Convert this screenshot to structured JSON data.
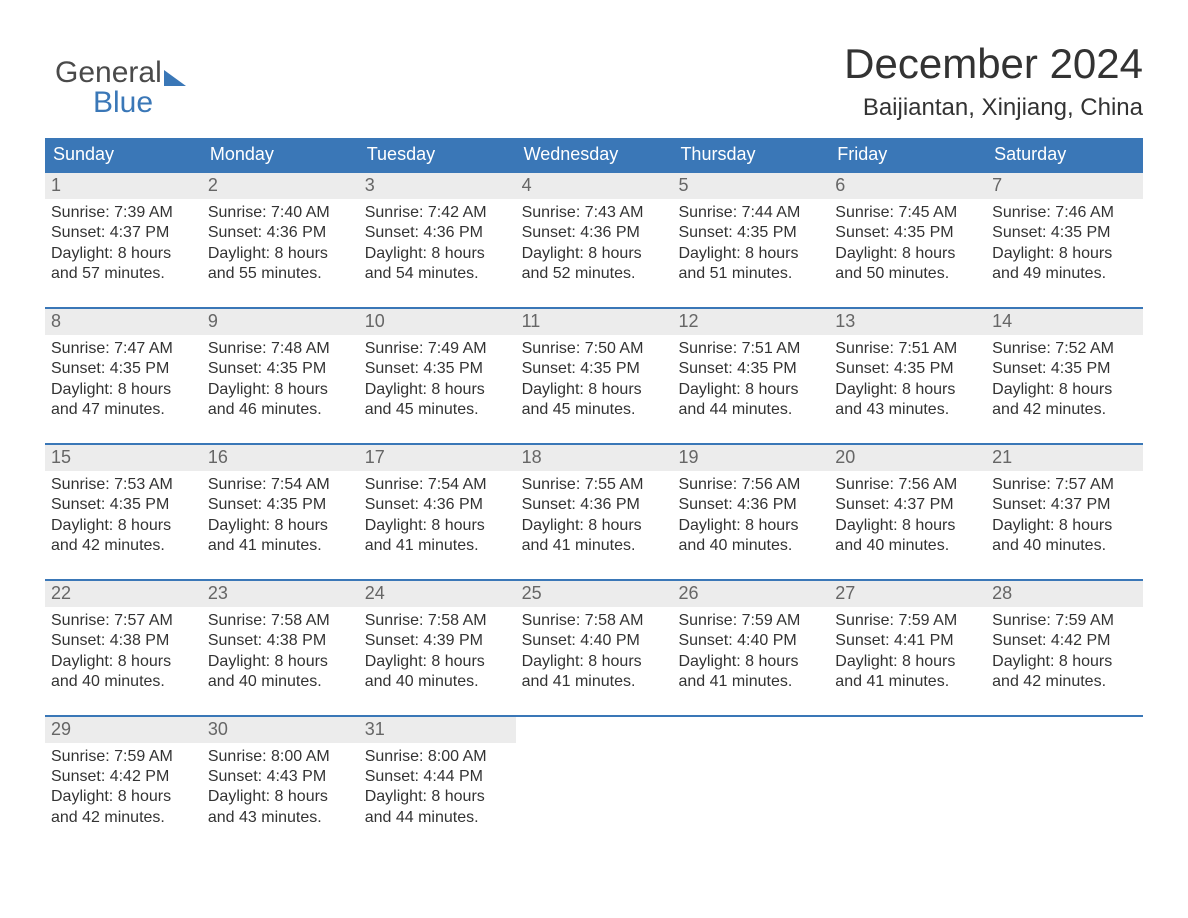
{
  "logo": {
    "line1": "General",
    "line2": "Blue"
  },
  "title": "December 2024",
  "location": "Baijiantan, Xinjiang, China",
  "columns": [
    "Sunday",
    "Monday",
    "Tuesday",
    "Wednesday",
    "Thursday",
    "Friday",
    "Saturday"
  ],
  "colors": {
    "header_bg": "#3a77b7",
    "header_text": "#ffffff",
    "daynum_bg": "#ececec",
    "daynum_text": "#666666",
    "body_text": "#333333",
    "week_border": "#3a77b7",
    "logo_line2": "#3a77b7"
  },
  "layout": {
    "cols": 7,
    "rows": 5
  },
  "label_prefixes": {
    "sunrise": "Sunrise: ",
    "sunset": "Sunset: ",
    "daylight": "Daylight: "
  },
  "weeks": [
    [
      {
        "n": "1",
        "sunrise": "7:39 AM",
        "sunset": "4:37 PM",
        "dl1": "8 hours",
        "dl2": "and 57 minutes."
      },
      {
        "n": "2",
        "sunrise": "7:40 AM",
        "sunset": "4:36 PM",
        "dl1": "8 hours",
        "dl2": "and 55 minutes."
      },
      {
        "n": "3",
        "sunrise": "7:42 AM",
        "sunset": "4:36 PM",
        "dl1": "8 hours",
        "dl2": "and 54 minutes."
      },
      {
        "n": "4",
        "sunrise": "7:43 AM",
        "sunset": "4:36 PM",
        "dl1": "8 hours",
        "dl2": "and 52 minutes."
      },
      {
        "n": "5",
        "sunrise": "7:44 AM",
        "sunset": "4:35 PM",
        "dl1": "8 hours",
        "dl2": "and 51 minutes."
      },
      {
        "n": "6",
        "sunrise": "7:45 AM",
        "sunset": "4:35 PM",
        "dl1": "8 hours",
        "dl2": "and 50 minutes."
      },
      {
        "n": "7",
        "sunrise": "7:46 AM",
        "sunset": "4:35 PM",
        "dl1": "8 hours",
        "dl2": "and 49 minutes."
      }
    ],
    [
      {
        "n": "8",
        "sunrise": "7:47 AM",
        "sunset": "4:35 PM",
        "dl1": "8 hours",
        "dl2": "and 47 minutes."
      },
      {
        "n": "9",
        "sunrise": "7:48 AM",
        "sunset": "4:35 PM",
        "dl1": "8 hours",
        "dl2": "and 46 minutes."
      },
      {
        "n": "10",
        "sunrise": "7:49 AM",
        "sunset": "4:35 PM",
        "dl1": "8 hours",
        "dl2": "and 45 minutes."
      },
      {
        "n": "11",
        "sunrise": "7:50 AM",
        "sunset": "4:35 PM",
        "dl1": "8 hours",
        "dl2": "and 45 minutes."
      },
      {
        "n": "12",
        "sunrise": "7:51 AM",
        "sunset": "4:35 PM",
        "dl1": "8 hours",
        "dl2": "and 44 minutes."
      },
      {
        "n": "13",
        "sunrise": "7:51 AM",
        "sunset": "4:35 PM",
        "dl1": "8 hours",
        "dl2": "and 43 minutes."
      },
      {
        "n": "14",
        "sunrise": "7:52 AM",
        "sunset": "4:35 PM",
        "dl1": "8 hours",
        "dl2": "and 42 minutes."
      }
    ],
    [
      {
        "n": "15",
        "sunrise": "7:53 AM",
        "sunset": "4:35 PM",
        "dl1": "8 hours",
        "dl2": "and 42 minutes."
      },
      {
        "n": "16",
        "sunrise": "7:54 AM",
        "sunset": "4:35 PM",
        "dl1": "8 hours",
        "dl2": "and 41 minutes."
      },
      {
        "n": "17",
        "sunrise": "7:54 AM",
        "sunset": "4:36 PM",
        "dl1": "8 hours",
        "dl2": "and 41 minutes."
      },
      {
        "n": "18",
        "sunrise": "7:55 AM",
        "sunset": "4:36 PM",
        "dl1": "8 hours",
        "dl2": "and 41 minutes."
      },
      {
        "n": "19",
        "sunrise": "7:56 AM",
        "sunset": "4:36 PM",
        "dl1": "8 hours",
        "dl2": "and 40 minutes."
      },
      {
        "n": "20",
        "sunrise": "7:56 AM",
        "sunset": "4:37 PM",
        "dl1": "8 hours",
        "dl2": "and 40 minutes."
      },
      {
        "n": "21",
        "sunrise": "7:57 AM",
        "sunset": "4:37 PM",
        "dl1": "8 hours",
        "dl2": "and 40 minutes."
      }
    ],
    [
      {
        "n": "22",
        "sunrise": "7:57 AM",
        "sunset": "4:38 PM",
        "dl1": "8 hours",
        "dl2": "and 40 minutes."
      },
      {
        "n": "23",
        "sunrise": "7:58 AM",
        "sunset": "4:38 PM",
        "dl1": "8 hours",
        "dl2": "and 40 minutes."
      },
      {
        "n": "24",
        "sunrise": "7:58 AM",
        "sunset": "4:39 PM",
        "dl1": "8 hours",
        "dl2": "and 40 minutes."
      },
      {
        "n": "25",
        "sunrise": "7:58 AM",
        "sunset": "4:40 PM",
        "dl1": "8 hours",
        "dl2": "and 41 minutes."
      },
      {
        "n": "26",
        "sunrise": "7:59 AM",
        "sunset": "4:40 PM",
        "dl1": "8 hours",
        "dl2": "and 41 minutes."
      },
      {
        "n": "27",
        "sunrise": "7:59 AM",
        "sunset": "4:41 PM",
        "dl1": "8 hours",
        "dl2": "and 41 minutes."
      },
      {
        "n": "28",
        "sunrise": "7:59 AM",
        "sunset": "4:42 PM",
        "dl1": "8 hours",
        "dl2": "and 42 minutes."
      }
    ],
    [
      {
        "n": "29",
        "sunrise": "7:59 AM",
        "sunset": "4:42 PM",
        "dl1": "8 hours",
        "dl2": "and 42 minutes."
      },
      {
        "n": "30",
        "sunrise": "8:00 AM",
        "sunset": "4:43 PM",
        "dl1": "8 hours",
        "dl2": "and 43 minutes."
      },
      {
        "n": "31",
        "sunrise": "8:00 AM",
        "sunset": "4:44 PM",
        "dl1": "8 hours",
        "dl2": "and 44 minutes."
      },
      null,
      null,
      null,
      null
    ]
  ]
}
